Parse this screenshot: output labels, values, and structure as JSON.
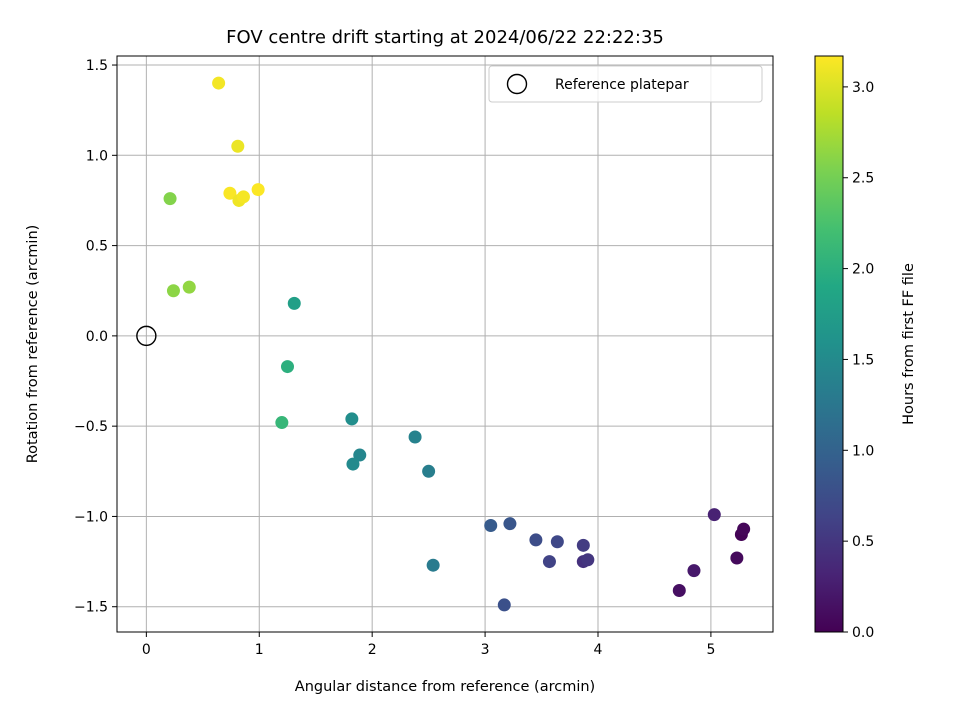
{
  "chart_data": {
    "type": "scatter",
    "title": "FOV centre drift starting at 2024/06/22 22:22:35",
    "xlabel": "Angular distance from reference (arcmin)",
    "ylabel": "Rotation from reference (arcmin)",
    "xlim": [
      -0.26,
      5.55
    ],
    "ylim": [
      -1.64,
      1.55
    ],
    "xticks": [
      0,
      1,
      2,
      3,
      4,
      5
    ],
    "xtick_labels": [
      "0",
      "1",
      "2",
      "3",
      "4",
      "5"
    ],
    "yticks": [
      -1.5,
      -1.0,
      -0.5,
      0.0,
      0.5,
      1.0,
      1.5
    ],
    "ytick_labels": [
      "−1.5",
      "−1.0",
      "−0.5",
      "0.0",
      "0.5",
      "1.0",
      "1.5"
    ],
    "grid": true,
    "legend": {
      "position": "upper right",
      "entries": [
        {
          "label": "Reference platepar",
          "marker": "open-circle"
        }
      ]
    },
    "reference_point": {
      "x": 0.0,
      "y": 0.0
    },
    "colorbar": {
      "label": "Hours from first FF file",
      "colormap": "viridis",
      "range": [
        0.0,
        3.17
      ],
      "ticks": [
        0.0,
        0.5,
        1.0,
        1.5,
        2.0,
        2.5,
        3.0
      ],
      "tick_labels": [
        "0.0",
        "0.5",
        "1.0",
        "1.5",
        "2.0",
        "2.5",
        "3.0"
      ]
    },
    "points": [
      {
        "x": 5.27,
        "y": -1.1,
        "c": 0.02
      },
      {
        "x": 5.29,
        "y": -1.07,
        "c": 0.05
      },
      {
        "x": 5.23,
        "y": -1.23,
        "c": 0.08
      },
      {
        "x": 4.72,
        "y": -1.41,
        "c": 0.13
      },
      {
        "x": 4.85,
        "y": -1.3,
        "c": 0.22
      },
      {
        "x": 5.03,
        "y": -0.99,
        "c": 0.3
      },
      {
        "x": 3.87,
        "y": -1.25,
        "c": 0.45
      },
      {
        "x": 3.91,
        "y": -1.24,
        "c": 0.5
      },
      {
        "x": 3.87,
        "y": -1.16,
        "c": 0.55
      },
      {
        "x": 3.57,
        "y": -1.25,
        "c": 0.62
      },
      {
        "x": 3.64,
        "y": -1.14,
        "c": 0.68
      },
      {
        "x": 3.45,
        "y": -1.13,
        "c": 0.74
      },
      {
        "x": 3.17,
        "y": -1.49,
        "c": 0.78
      },
      {
        "x": 3.22,
        "y": -1.04,
        "c": 0.85
      },
      {
        "x": 3.05,
        "y": -1.05,
        "c": 0.9
      },
      {
        "x": 2.54,
        "y": -1.27,
        "c": 1.3
      },
      {
        "x": 2.5,
        "y": -0.75,
        "c": 1.35
      },
      {
        "x": 2.38,
        "y": -0.56,
        "c": 1.4
      },
      {
        "x": 1.89,
        "y": -0.66,
        "c": 1.45
      },
      {
        "x": 1.83,
        "y": -0.71,
        "c": 1.5
      },
      {
        "x": 1.82,
        "y": -0.46,
        "c": 1.55
      },
      {
        "x": 1.31,
        "y": 0.18,
        "c": 1.78
      },
      {
        "x": 1.25,
        "y": -0.17,
        "c": 2.0
      },
      {
        "x": 1.2,
        "y": -0.48,
        "c": 2.1
      },
      {
        "x": 0.24,
        "y": 0.25,
        "c": 2.62
      },
      {
        "x": 0.38,
        "y": 0.27,
        "c": 2.65
      },
      {
        "x": 0.21,
        "y": 0.76,
        "c": 2.58
      },
      {
        "x": 0.64,
        "y": 1.4,
        "c": 3.12
      },
      {
        "x": 0.81,
        "y": 1.05,
        "c": 3.08
      },
      {
        "x": 0.74,
        "y": 0.79,
        "c": 3.15
      },
      {
        "x": 0.82,
        "y": 0.75,
        "c": 3.1
      },
      {
        "x": 0.86,
        "y": 0.77,
        "c": 3.13
      },
      {
        "x": 0.99,
        "y": 0.81,
        "c": 3.16
      }
    ]
  }
}
